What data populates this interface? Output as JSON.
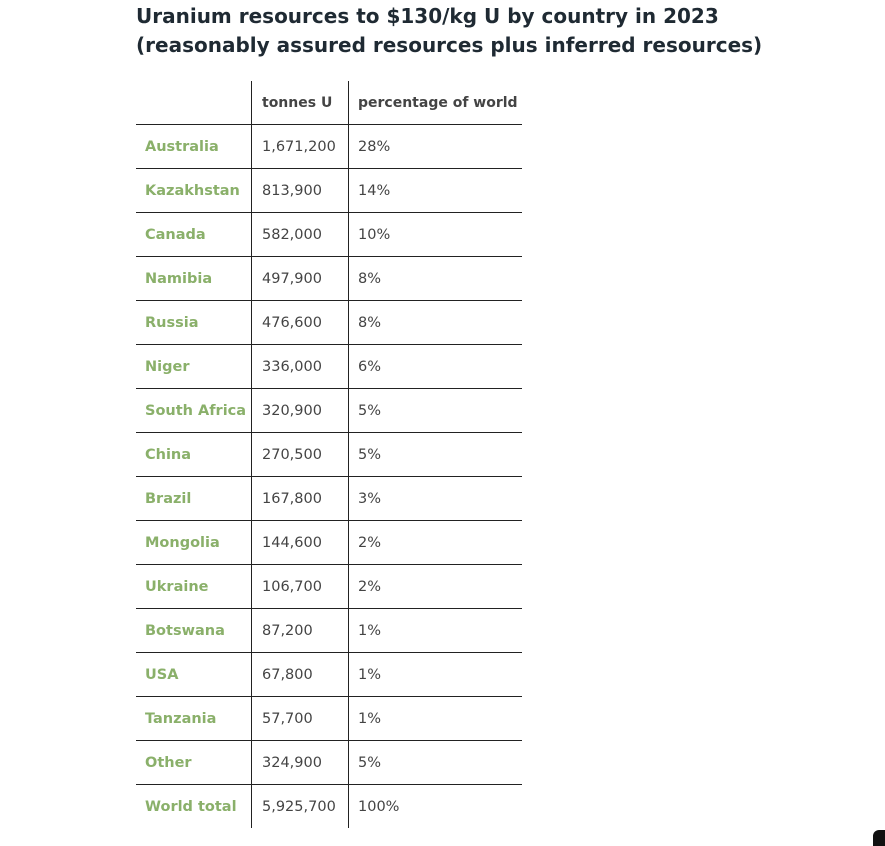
{
  "title": "Uranium resources to $130/kg U by country in 2023 (reasonably assured resources plus inferred resources)",
  "table": {
    "headers": [
      "",
      "tonnes U",
      "percentage of world"
    ],
    "rows": [
      [
        "Australia",
        "1,671,200",
        "28%"
      ],
      [
        "Kazakhstan",
        "813,900",
        "14%"
      ],
      [
        "Canada",
        "582,000",
        "10%"
      ],
      [
        "Namibia",
        "497,900",
        "8%"
      ],
      [
        "Russia",
        "476,600",
        "8%"
      ],
      [
        "Niger",
        "336,000",
        "6%"
      ],
      [
        "South Africa",
        "320,900",
        "5%"
      ],
      [
        "China",
        "270,500",
        "5%"
      ],
      [
        "Brazil",
        "167,800",
        "3%"
      ],
      [
        "Mongolia",
        "144,600",
        "2%"
      ],
      [
        "Ukraine",
        "106,700",
        "2%"
      ],
      [
        "Botswana",
        "87,200",
        "1%"
      ],
      [
        "USA",
        "67,800",
        "1%"
      ],
      [
        "Tanzania",
        "57,700",
        "1%"
      ],
      [
        "Other",
        "324,900",
        "5%"
      ],
      [
        "World total",
        "5,925,700",
        "100%"
      ]
    ]
  },
  "colors": {
    "accent": "#8ab06a",
    "text": "#444444",
    "title": "#1f2a33",
    "rule": "#222222"
  }
}
